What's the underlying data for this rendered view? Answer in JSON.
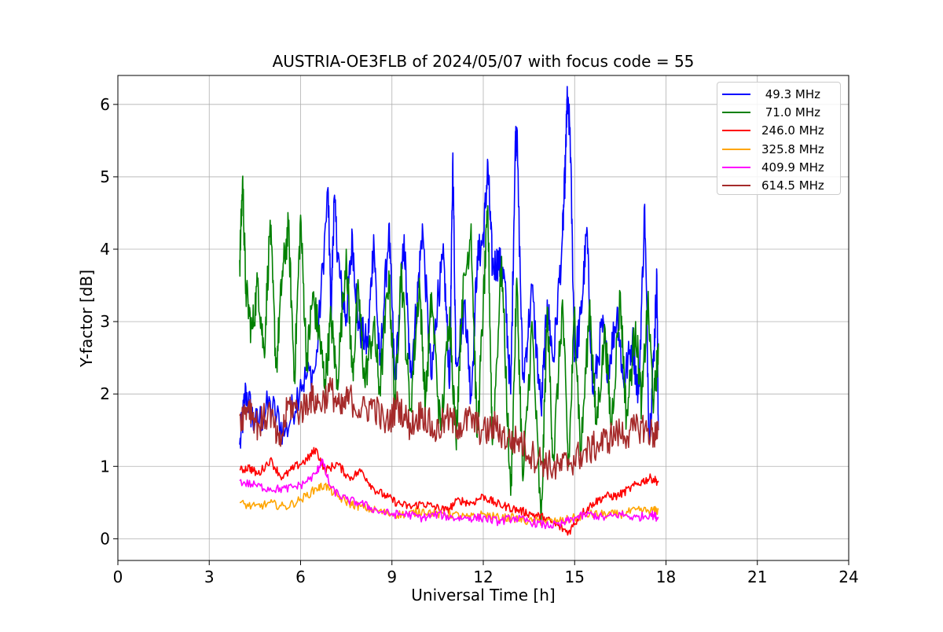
{
  "chart_data": {
    "type": "line",
    "title": "AUSTRIA-OE3FLB of 2024/05/07 with focus code = 55",
    "xlabel": "Universal Time [h]",
    "ylabel": "Y-factor [dB]",
    "xlim": [
      0,
      24
    ],
    "ylim": [
      -0.3,
      6.4
    ],
    "xticks": [
      0,
      3,
      6,
      9,
      12,
      15,
      18,
      21,
      24
    ],
    "yticks": [
      0,
      1,
      2,
      3,
      4,
      5,
      6
    ],
    "grid": true,
    "legend_position": "top-right",
    "series": [
      {
        "name": " 49.3 MHz",
        "color": "#0000ff",
        "points": [
          [
            4.0,
            1.3
          ],
          [
            4.2,
            2.1
          ],
          [
            4.5,
            1.6
          ],
          [
            5.0,
            1.9
          ],
          [
            5.5,
            1.5
          ],
          [
            6.0,
            2.2
          ],
          [
            6.5,
            2.4
          ],
          [
            6.9,
            4.85
          ],
          [
            7.0,
            3.2
          ],
          [
            7.1,
            4.7
          ],
          [
            7.3,
            3.6
          ],
          [
            7.5,
            3.1
          ],
          [
            7.7,
            4.2
          ],
          [
            7.9,
            3.0
          ],
          [
            8.2,
            2.7
          ],
          [
            8.4,
            4.2
          ],
          [
            8.6,
            2.4
          ],
          [
            8.9,
            4.35
          ],
          [
            9.1,
            2.2
          ],
          [
            9.4,
            4.2
          ],
          [
            9.6,
            2.3
          ],
          [
            9.8,
            3.2
          ],
          [
            10.0,
            4.35
          ],
          [
            10.3,
            2.2
          ],
          [
            10.5,
            3.4
          ],
          [
            10.7,
            3.9
          ],
          [
            10.9,
            2.2
          ],
          [
            11.0,
            5.33
          ],
          [
            11.1,
            2.5
          ],
          [
            11.4,
            3.3
          ],
          [
            11.6,
            2.0
          ],
          [
            11.8,
            3.9
          ],
          [
            12.0,
            4.2
          ],
          [
            12.15,
            5.2
          ],
          [
            12.3,
            3.8
          ],
          [
            12.5,
            3.9
          ],
          [
            12.7,
            3.6
          ],
          [
            12.9,
            2.0
          ],
          [
            13.05,
            5.5
          ],
          [
            13.1,
            5.68
          ],
          [
            13.3,
            2.2
          ],
          [
            13.6,
            3.5
          ],
          [
            13.9,
            1.8
          ],
          [
            14.1,
            3.3
          ],
          [
            14.3,
            2.5
          ],
          [
            14.6,
            4.2
          ],
          [
            14.7,
            5.25
          ],
          [
            14.75,
            6.08
          ],
          [
            14.85,
            5.68
          ],
          [
            15.0,
            2.5
          ],
          [
            15.2,
            3.1
          ],
          [
            15.4,
            4.3
          ],
          [
            15.6,
            2.0
          ],
          [
            15.9,
            3.0
          ],
          [
            16.1,
            2.4
          ],
          [
            16.4,
            3.2
          ],
          [
            16.6,
            2.2
          ],
          [
            16.9,
            2.8
          ],
          [
            17.1,
            2.0
          ],
          [
            17.3,
            4.62
          ],
          [
            17.45,
            1.4
          ],
          [
            17.6,
            2.6
          ],
          [
            17.7,
            3.64
          ],
          [
            17.75,
            1.5
          ]
        ]
      },
      {
        "name": " 71.0 MHz",
        "color": "#008000",
        "points": [
          [
            4.0,
            3.85
          ],
          [
            4.1,
            5.01
          ],
          [
            4.2,
            3.5
          ],
          [
            4.4,
            2.9
          ],
          [
            4.6,
            3.6
          ],
          [
            4.8,
            2.6
          ],
          [
            5.0,
            4.4
          ],
          [
            5.2,
            2.4
          ],
          [
            5.4,
            3.7
          ],
          [
            5.6,
            4.35
          ],
          [
            5.8,
            2.3
          ],
          [
            6.0,
            4.47
          ],
          [
            6.2,
            2.5
          ],
          [
            6.4,
            3.4
          ],
          [
            6.6,
            2.9
          ],
          [
            6.8,
            2.2
          ],
          [
            7.0,
            3.1
          ],
          [
            7.2,
            2.2
          ],
          [
            7.5,
            4.0
          ],
          [
            7.7,
            2.3
          ],
          [
            7.9,
            3.5
          ],
          [
            8.1,
            2.2
          ],
          [
            8.4,
            3.0
          ],
          [
            8.6,
            2.1
          ],
          [
            8.9,
            3.7
          ],
          [
            9.1,
            1.9
          ],
          [
            9.3,
            3.8
          ],
          [
            9.6,
            1.8
          ],
          [
            9.9,
            3.6
          ],
          [
            10.1,
            1.9
          ],
          [
            10.3,
            3.4
          ],
          [
            10.6,
            1.5
          ],
          [
            10.9,
            3.2
          ],
          [
            11.1,
            1.4
          ],
          [
            11.3,
            3.3
          ],
          [
            11.6,
            4.35
          ],
          [
            11.8,
            1.4
          ],
          [
            12.0,
            3.3
          ],
          [
            12.15,
            4.6
          ],
          [
            12.3,
            1.3
          ],
          [
            12.6,
            3.9
          ],
          [
            12.9,
            0.6
          ],
          [
            13.1,
            3.6
          ],
          [
            13.3,
            0.8
          ],
          [
            13.6,
            3.0
          ],
          [
            13.9,
            0.2
          ],
          [
            14.1,
            3.2
          ],
          [
            14.3,
            1.1
          ],
          [
            14.6,
            3.3
          ],
          [
            14.8,
            1.0
          ],
          [
            15.0,
            3.2
          ],
          [
            15.2,
            1.2
          ],
          [
            15.5,
            3.3
          ],
          [
            15.7,
            1.6
          ],
          [
            16.0,
            2.9
          ],
          [
            16.2,
            1.6
          ],
          [
            16.5,
            3.4
          ],
          [
            16.7,
            1.7
          ],
          [
            17.0,
            3.0
          ],
          [
            17.2,
            1.9
          ],
          [
            17.4,
            3.3
          ],
          [
            17.6,
            1.9
          ],
          [
            17.75,
            2.7
          ]
        ]
      },
      {
        "name": "246.0 MHz",
        "color": "#ff0000",
        "points": [
          [
            4.0,
            0.95
          ],
          [
            4.3,
            1.0
          ],
          [
            4.6,
            0.9
          ],
          [
            5.0,
            1.1
          ],
          [
            5.4,
            0.85
          ],
          [
            5.8,
            1.0
          ],
          [
            6.2,
            1.1
          ],
          [
            6.5,
            1.25
          ],
          [
            6.8,
            0.95
          ],
          [
            7.2,
            1.05
          ],
          [
            7.6,
            0.85
          ],
          [
            8.0,
            0.95
          ],
          [
            8.4,
            0.7
          ],
          [
            8.8,
            0.6
          ],
          [
            9.2,
            0.5
          ],
          [
            9.6,
            0.45
          ],
          [
            10.0,
            0.5
          ],
          [
            10.4,
            0.45
          ],
          [
            10.8,
            0.4
          ],
          [
            11.2,
            0.55
          ],
          [
            11.6,
            0.5
          ],
          [
            12.0,
            0.6
          ],
          [
            12.4,
            0.5
          ],
          [
            12.8,
            0.45
          ],
          [
            13.2,
            0.4
          ],
          [
            13.6,
            0.35
          ],
          [
            14.0,
            0.3
          ],
          [
            14.4,
            0.2
          ],
          [
            14.8,
            0.1
          ],
          [
            15.2,
            0.35
          ],
          [
            15.6,
            0.5
          ],
          [
            16.0,
            0.6
          ],
          [
            16.4,
            0.6
          ],
          [
            16.8,
            0.7
          ],
          [
            17.2,
            0.8
          ],
          [
            17.5,
            0.85
          ],
          [
            17.75,
            0.8
          ]
        ]
      },
      {
        "name": "325.8 MHz",
        "color": "#ffa500",
        "points": [
          [
            4.0,
            0.5
          ],
          [
            4.5,
            0.45
          ],
          [
            5.0,
            0.5
          ],
          [
            5.5,
            0.45
          ],
          [
            6.0,
            0.55
          ],
          [
            6.5,
            0.7
          ],
          [
            6.8,
            0.75
          ],
          [
            7.2,
            0.6
          ],
          [
            7.6,
            0.5
          ],
          [
            8.0,
            0.45
          ],
          [
            8.5,
            0.4
          ],
          [
            9.0,
            0.35
          ],
          [
            9.5,
            0.35
          ],
          [
            10.0,
            0.4
          ],
          [
            10.5,
            0.35
          ],
          [
            11.0,
            0.35
          ],
          [
            11.5,
            0.3
          ],
          [
            12.0,
            0.35
          ],
          [
            12.5,
            0.3
          ],
          [
            13.0,
            0.3
          ],
          [
            13.5,
            0.25
          ],
          [
            14.0,
            0.25
          ],
          [
            14.5,
            0.25
          ],
          [
            15.0,
            0.3
          ],
          [
            15.5,
            0.35
          ],
          [
            16.0,
            0.35
          ],
          [
            16.5,
            0.35
          ],
          [
            17.0,
            0.4
          ],
          [
            17.5,
            0.4
          ],
          [
            17.75,
            0.4
          ]
        ]
      },
      {
        "name": "409.9 MHz",
        "color": "#ff00ff",
        "points": [
          [
            4.0,
            0.8
          ],
          [
            4.5,
            0.75
          ],
          [
            5.0,
            0.7
          ],
          [
            5.5,
            0.7
          ],
          [
            6.0,
            0.75
          ],
          [
            6.5,
            0.9
          ],
          [
            6.7,
            1.1
          ],
          [
            7.0,
            0.7
          ],
          [
            7.5,
            0.55
          ],
          [
            8.0,
            0.5
          ],
          [
            8.5,
            0.4
          ],
          [
            9.0,
            0.35
          ],
          [
            9.5,
            0.35
          ],
          [
            10.0,
            0.3
          ],
          [
            10.5,
            0.35
          ],
          [
            11.0,
            0.3
          ],
          [
            11.5,
            0.3
          ],
          [
            12.0,
            0.3
          ],
          [
            12.5,
            0.25
          ],
          [
            13.0,
            0.3
          ],
          [
            13.5,
            0.25
          ],
          [
            14.0,
            0.2
          ],
          [
            14.5,
            0.2
          ],
          [
            15.0,
            0.3
          ],
          [
            15.5,
            0.35
          ],
          [
            16.0,
            0.3
          ],
          [
            16.5,
            0.35
          ],
          [
            17.0,
            0.3
          ],
          [
            17.5,
            0.35
          ],
          [
            17.75,
            0.3
          ]
        ]
      },
      {
        "name": "614.5 MHz",
        "color": "#a52a2a",
        "points": [
          [
            4.0,
            1.7
          ],
          [
            4.3,
            1.9
          ],
          [
            4.6,
            1.6
          ],
          [
            5.0,
            1.8
          ],
          [
            5.3,
            1.3
          ],
          [
            5.6,
            1.9
          ],
          [
            6.0,
            1.8
          ],
          [
            6.3,
            2.0
          ],
          [
            6.6,
            1.9
          ],
          [
            7.0,
            2.1
          ],
          [
            7.3,
            1.8
          ],
          [
            7.6,
            2.0
          ],
          [
            8.0,
            1.8
          ],
          [
            8.4,
            1.9
          ],
          [
            8.8,
            1.6
          ],
          [
            9.2,
            1.9
          ],
          [
            9.6,
            1.6
          ],
          [
            10.0,
            1.8
          ],
          [
            10.4,
            1.5
          ],
          [
            10.8,
            1.7
          ],
          [
            11.2,
            1.6
          ],
          [
            11.6,
            1.7
          ],
          [
            12.0,
            1.5
          ],
          [
            12.4,
            1.6
          ],
          [
            12.8,
            1.4
          ],
          [
            13.2,
            1.4
          ],
          [
            13.6,
            1.2
          ],
          [
            14.0,
            1.1
          ],
          [
            14.4,
            1.0
          ],
          [
            14.8,
            1.1
          ],
          [
            15.2,
            1.2
          ],
          [
            15.6,
            1.3
          ],
          [
            16.0,
            1.4
          ],
          [
            16.4,
            1.5
          ],
          [
            16.8,
            1.5
          ],
          [
            17.2,
            1.6
          ],
          [
            17.5,
            1.5
          ],
          [
            17.75,
            1.5
          ]
        ]
      }
    ]
  }
}
